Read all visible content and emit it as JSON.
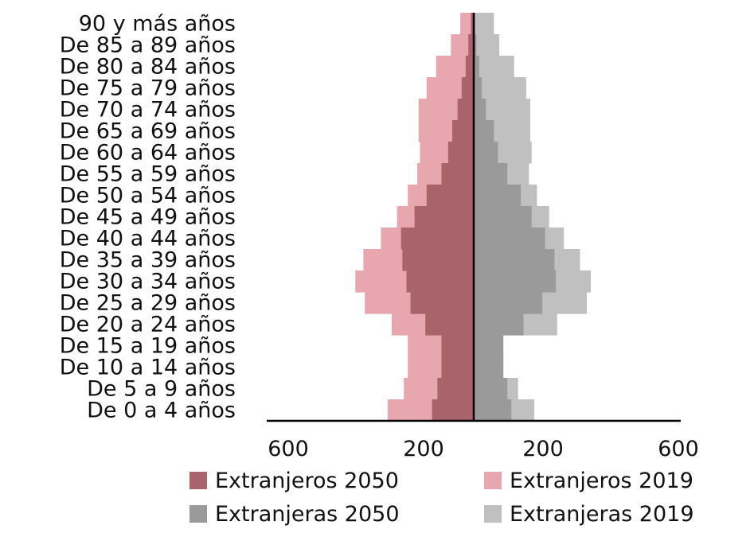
{
  "chart_data": {
    "type": "bar",
    "orientation": "horizontal",
    "subtype": "population-pyramid",
    "title": "",
    "xlabel": "",
    "ylabel": "",
    "xlim": [
      -600,
      600
    ],
    "x_ticks": [
      -600,
      -200,
      200,
      600
    ],
    "x_tick_labels": [
      "600",
      "200",
      "200",
      "600"
    ],
    "categories": [
      "De 0 a 4 años",
      "De 5 a 9 años",
      "De 10 a 14 años",
      "De 15 a 19 años",
      "De 20 a 24 años",
      "De 25 a 29 años",
      "De 30 a 34 años",
      "De 35 a 39 años",
      "De 40 a 44 años",
      "De 45 a 49 años",
      "De 50 a 54 años",
      "De 55 a 59 años",
      "De 60 a 64 años",
      "De 65 a 69 años",
      "De 70 a 74 años",
      "De 75 a 79 años",
      "De 80 a 84 años",
      "De 85 a 89 años",
      "90 y más años"
    ],
    "series": [
      {
        "name": "Extranjeros 2050",
        "side": "left",
        "color": "#a8636b",
        "values": [
          155,
          135,
          120,
          120,
          180,
          235,
          250,
          265,
          270,
          220,
          175,
          120,
          95,
          80,
          60,
          45,
          30,
          20,
          10
        ]
      },
      {
        "name": "Extranjeros 2019",
        "side": "left",
        "color": "#e8a7ae",
        "values": [
          320,
          260,
          245,
          245,
          305,
          405,
          440,
          410,
          345,
          285,
          245,
          210,
          200,
          205,
          205,
          175,
          140,
          85,
          50
        ]
      },
      {
        "name": "Extranjeras 2050",
        "side": "right",
        "color": "#9a9a9a",
        "values": [
          140,
          125,
          110,
          110,
          185,
          255,
          305,
          300,
          265,
          215,
          175,
          125,
          90,
          75,
          45,
          30,
          20,
          10,
          5
        ]
      },
      {
        "name": "Extranjeras 2019",
        "side": "right",
        "color": "#c0c0c0",
        "values": [
          225,
          165,
          110,
          110,
          310,
          420,
          435,
          395,
          335,
          280,
          235,
          205,
          215,
          210,
          210,
          195,
          150,
          95,
          75
        ]
      }
    ],
    "legend": {
      "position": "bottom",
      "columns": 2,
      "entries": [
        "Extranjeros 2050",
        "Extranjeros 2019",
        "Extranjeras 2050",
        "Extranjeras 2019"
      ],
      "swatch_colors": [
        "#a8636b",
        "#e8a7ae",
        "#9a9a9a",
        "#c0c0c0"
      ]
    },
    "grid": false
  }
}
